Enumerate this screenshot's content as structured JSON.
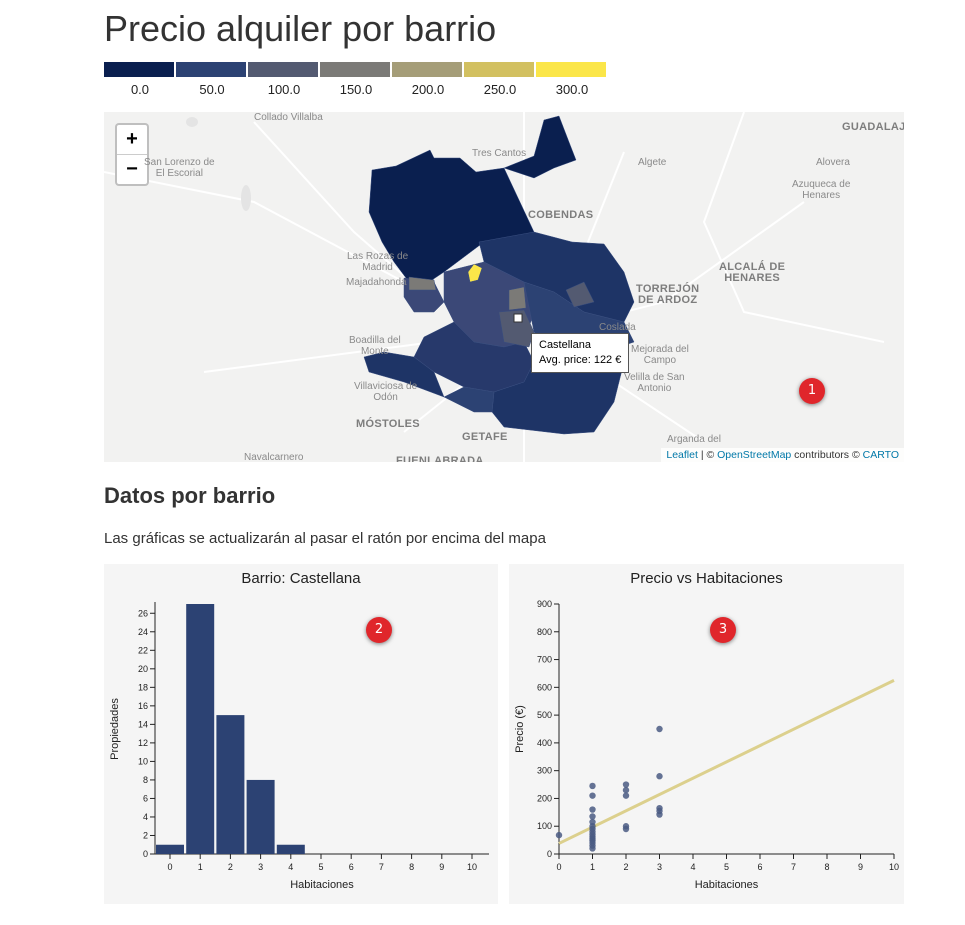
{
  "page": {
    "title": "Precio alquiler por barrio"
  },
  "legend": {
    "colors": [
      "#0a1f4f",
      "#2c4273",
      "#535a71",
      "#7b7a77",
      "#a59d78",
      "#d2c060",
      "#fbe649"
    ],
    "labels": [
      "0.0",
      "50.0",
      "100.0",
      "150.0",
      "200.0",
      "250.0",
      "300.0"
    ]
  },
  "map": {
    "zoom_in_label": "+",
    "zoom_out_label": "−",
    "places": [
      {
        "name": "Collado Villalba",
        "big": false
      },
      {
        "name": "San Lorenzo de\nEl Escorial",
        "big": false
      },
      {
        "name": "Tres Cantos",
        "big": false
      },
      {
        "name": "Algete",
        "big": false
      },
      {
        "name": "Alovera",
        "big": false
      },
      {
        "name": "GUADALAJARA",
        "big": true
      },
      {
        "name": "Azuqueca de\nHenares",
        "big": false
      },
      {
        "name": "COBENDAS",
        "big": true
      },
      {
        "name": "Las Rozas de\nMadrid",
        "big": false
      },
      {
        "name": "Majadahonda",
        "big": false
      },
      {
        "name": "TORREJÓN\nDE ARDOZ",
        "big": true
      },
      {
        "name": "ALCALÁ DE\nHENARES",
        "big": true
      },
      {
        "name": "Boadilla del\nMonte",
        "big": false
      },
      {
        "name": "Coslada",
        "big": false
      },
      {
        "name": "Mejorada del\nCampo",
        "big": false
      },
      {
        "name": "Velilla de San\nAntonio",
        "big": false
      },
      {
        "name": "Villaviciosa de\nOdón",
        "big": false
      },
      {
        "name": "MÓSTOLES",
        "big": true
      },
      {
        "name": "GETAFE",
        "big": true
      },
      {
        "name": "Arganda del",
        "big": false
      },
      {
        "name": "Navalcarnero",
        "big": false
      },
      {
        "name": "FUENLABRADA",
        "big": true
      }
    ],
    "tooltip": {
      "name": "Castellana",
      "price": "Avg. price: 122 €"
    },
    "attribution": {
      "leaflet": "Leaflet",
      "sep": " | © ",
      "osm": "OpenStreetMap",
      "mid": " contributors © ",
      "carto": "CARTO"
    }
  },
  "markers": [
    "1",
    "2",
    "3"
  ],
  "section": {
    "title": "Datos por barrio",
    "description": "Las gráficas se actualizarán al pasar el ratón por encima del mapa"
  },
  "chart_data": [
    {
      "type": "bar",
      "title": "Barrio: Castellana",
      "xlabel": "Habitaciones",
      "ylabel": "Propiedades",
      "categories": [
        0,
        1,
        2,
        3,
        4,
        5,
        6,
        7,
        8,
        9,
        10
      ],
      "values": [
        1,
        27,
        15,
        8,
        1,
        0,
        0,
        0,
        0,
        0,
        0
      ],
      "ylim": [
        0,
        27
      ],
      "yticks": [
        0,
        2,
        4,
        6,
        8,
        10,
        12,
        14,
        16,
        18,
        20,
        22,
        24,
        26
      ],
      "color": "#2c4273"
    },
    {
      "type": "scatter",
      "title": "Precio vs Habitaciones",
      "xlabel": "Habitaciones",
      "ylabel": "Precio (€)",
      "xlim": [
        0,
        10
      ],
      "ylim": [
        0,
        900
      ],
      "xticks": [
        0,
        1,
        2,
        3,
        4,
        5,
        6,
        7,
        8,
        9,
        10
      ],
      "yticks": [
        0,
        100,
        200,
        300,
        400,
        500,
        600,
        700,
        800,
        900
      ],
      "points": [
        [
          0,
          68
        ],
        [
          1,
          245
        ],
        [
          1,
          210
        ],
        [
          1,
          160
        ],
        [
          1,
          135
        ],
        [
          1,
          115
        ],
        [
          1,
          100
        ],
        [
          1,
          90
        ],
        [
          1,
          80
        ],
        [
          1,
          70
        ],
        [
          1,
          62
        ],
        [
          1,
          55
        ],
        [
          1,
          48
        ],
        [
          1,
          40
        ],
        [
          1,
          30
        ],
        [
          1,
          20
        ],
        [
          2,
          250
        ],
        [
          2,
          230
        ],
        [
          2,
          210
        ],
        [
          2,
          100
        ],
        [
          2,
          90
        ],
        [
          3,
          450
        ],
        [
          3,
          280
        ],
        [
          3,
          165
        ],
        [
          3,
          155
        ],
        [
          3,
          142
        ]
      ],
      "trend": {
        "from": [
          0,
          38
        ],
        "to": [
          10,
          625
        ],
        "color": "#dcd08d"
      },
      "point_color": "#4a5b82"
    }
  ]
}
